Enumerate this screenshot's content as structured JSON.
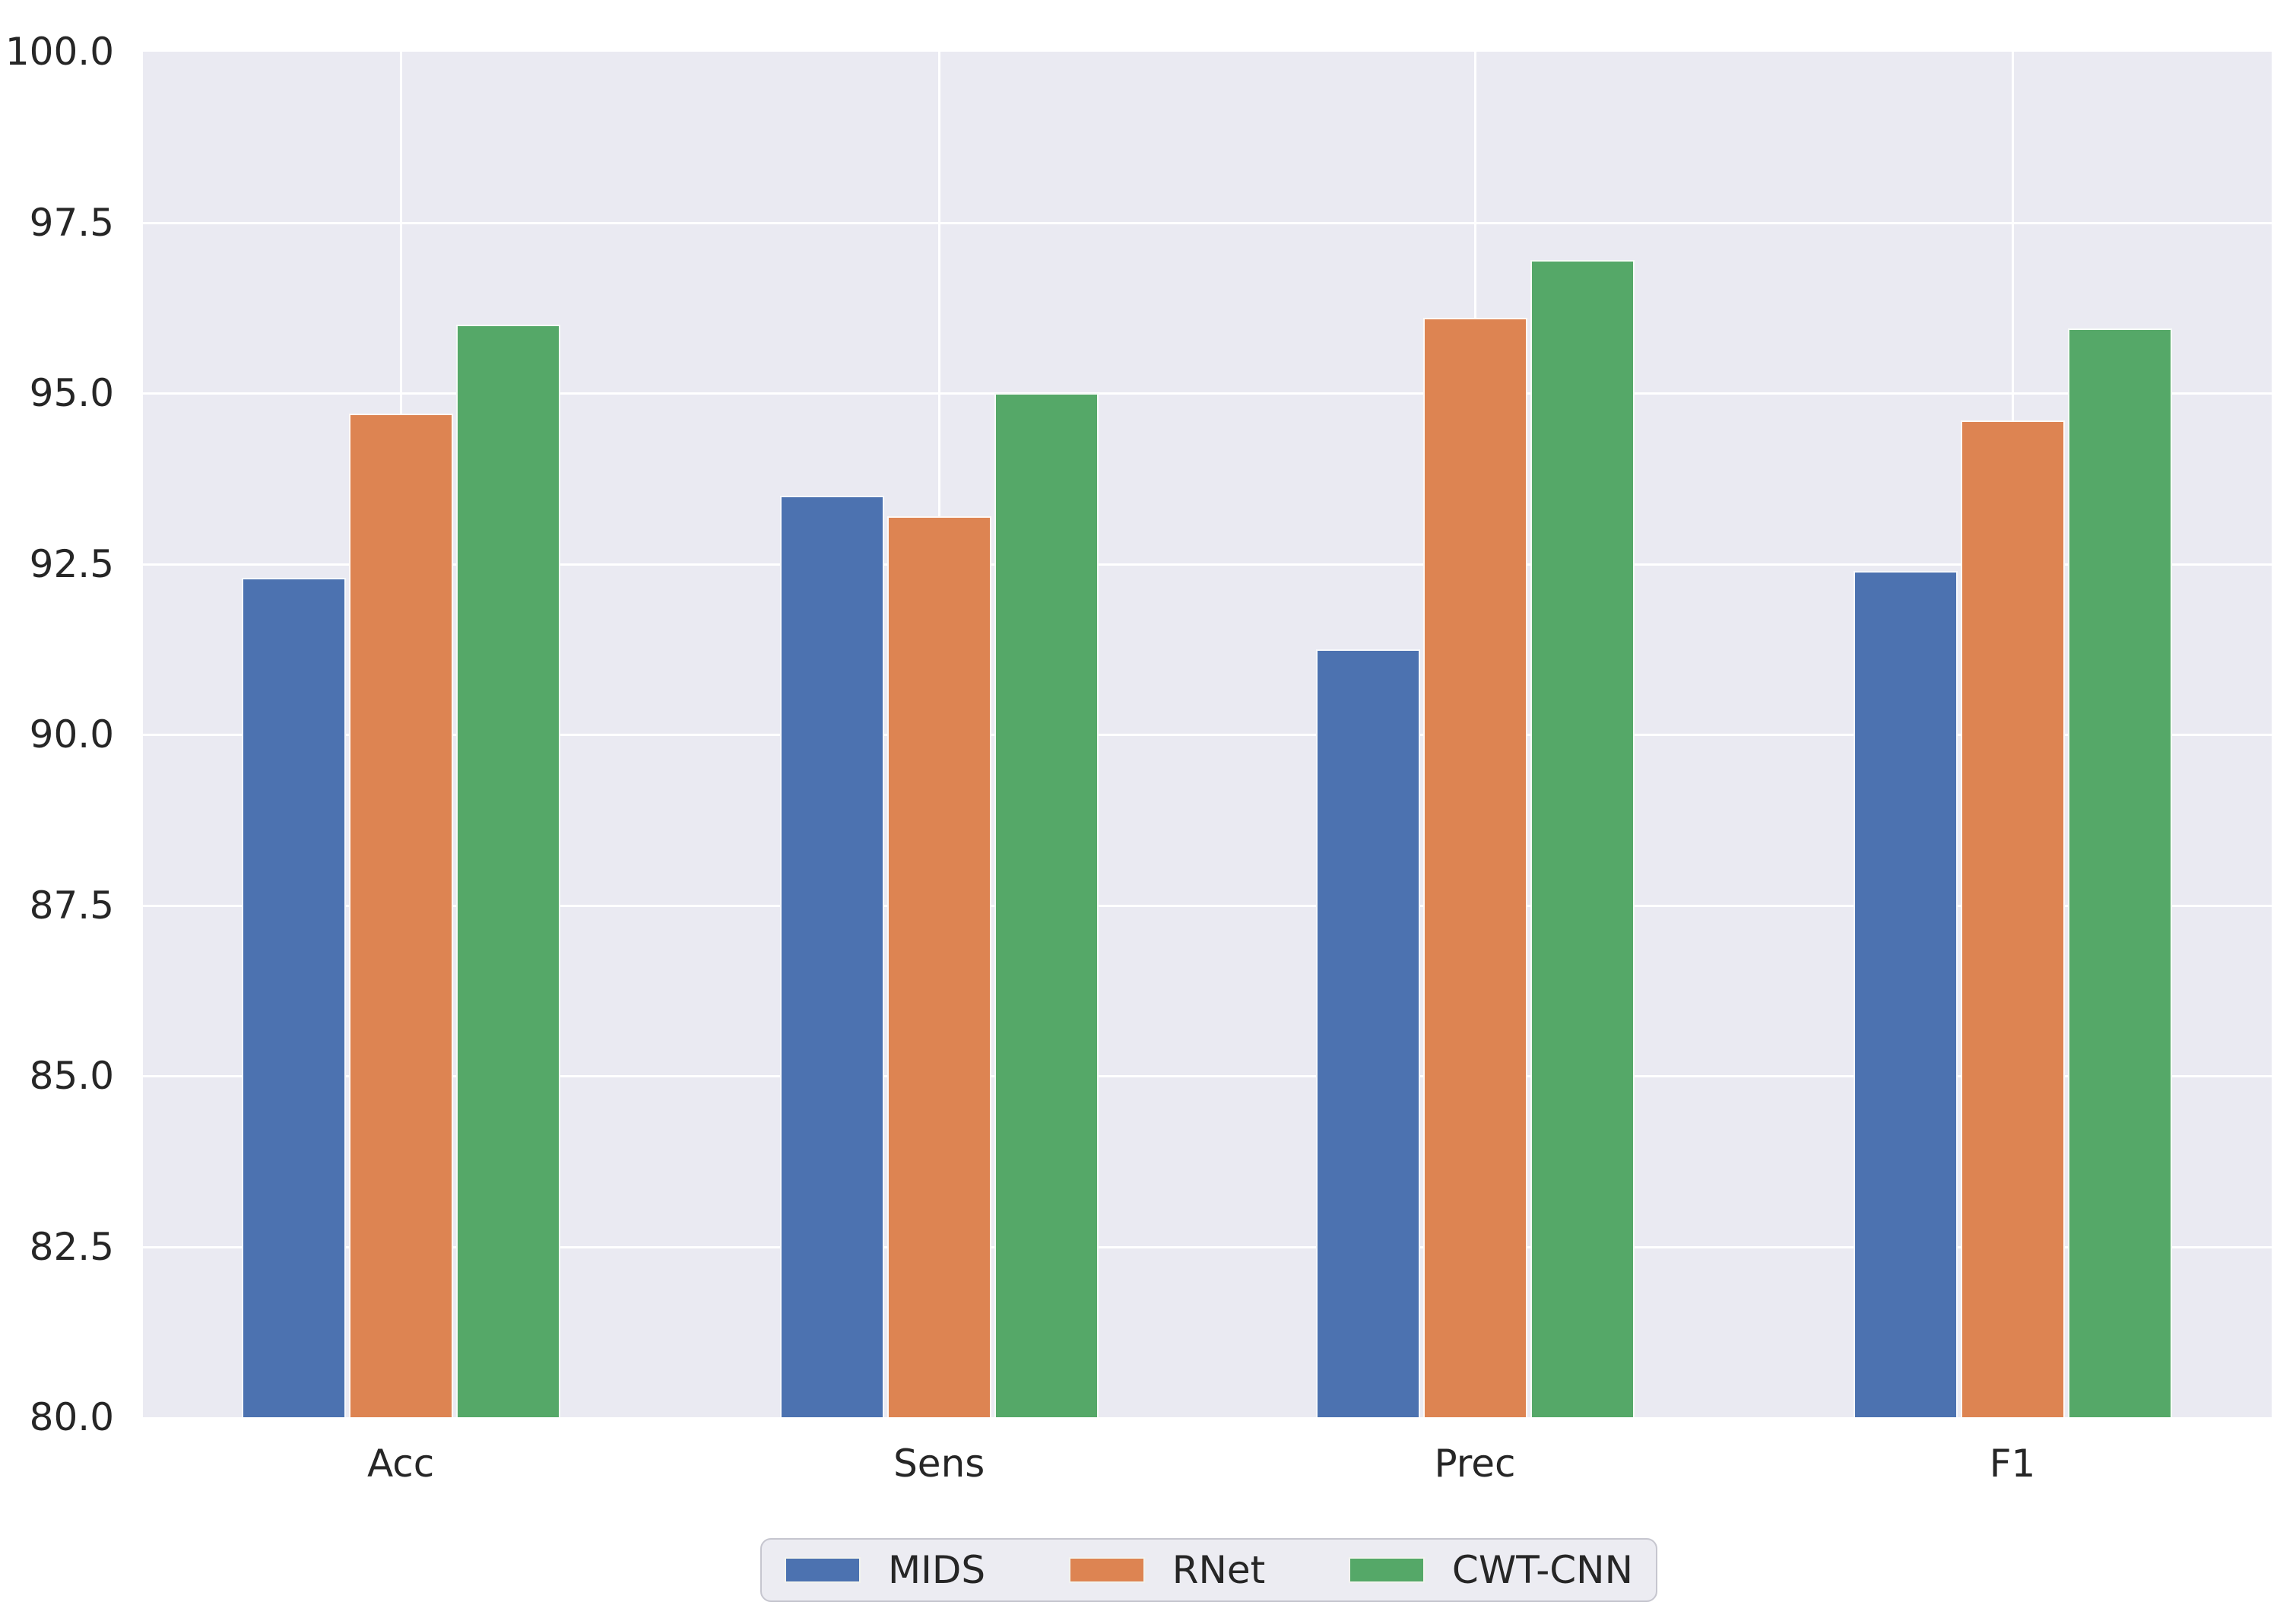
{
  "chart_data": {
    "type": "bar",
    "title": "",
    "xlabel": "",
    "ylabel": "",
    "categories": [
      "Acc",
      "Sens",
      "Prec",
      "F1"
    ],
    "series": [
      {
        "name": "MIDS",
        "color": "#4c72b0",
        "values": [
          92.3,
          93.5,
          91.25,
          92.4
        ]
      },
      {
        "name": "RNet",
        "color": "#dd8452",
        "values": [
          94.7,
          93.2,
          96.1,
          94.6
        ]
      },
      {
        "name": "CWT-CNN",
        "color": "#55a868",
        "values": [
          96.0,
          95.0,
          96.95,
          95.95
        ]
      }
    ],
    "ylim": [
      80.0,
      100.0
    ],
    "yticks": [
      80.0,
      82.5,
      85.0,
      87.5,
      90.0,
      92.5,
      95.0,
      97.5,
      100.0
    ],
    "ytick_labels": [
      "80.0",
      "82.5",
      "85.0",
      "87.5",
      "90.0",
      "92.5",
      "95.0",
      "97.5",
      "100.0"
    ],
    "grid": true,
    "legend_position": "bottom-center",
    "legend_entries": [
      "MIDS",
      "RNet",
      "CWT-CNN"
    ],
    "plot_background": "#eaeaf2",
    "gridline_color": "#ffffff",
    "tick_text_color": "#262626"
  }
}
